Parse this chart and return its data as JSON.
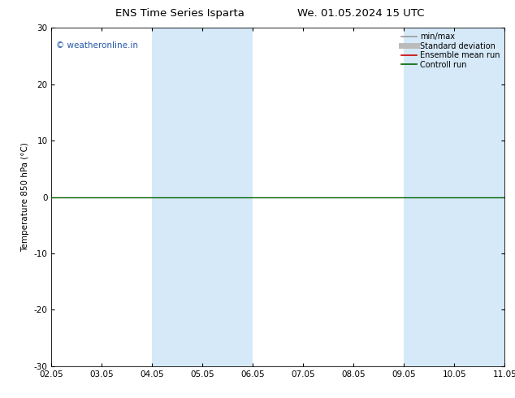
{
  "title_left": "ENS Time Series Isparta",
  "title_right": "We. 01.05.2024 15 UTC",
  "ylabel": "Temperature 850 hPa (°C)",
  "ylim": [
    -30,
    30
  ],
  "yticks": [
    -30,
    -20,
    -10,
    0,
    10,
    20,
    30
  ],
  "xtick_labels": [
    "02.05",
    "03.05",
    "04.05",
    "05.05",
    "06.05",
    "07.05",
    "08.05",
    "09.05",
    "10.05",
    "11.05"
  ],
  "xtick_positions": [
    0,
    1,
    2,
    3,
    4,
    5,
    6,
    7,
    8,
    9
  ],
  "shade_bands": [
    {
      "x_start": 2,
      "x_end": 4,
      "color": "#d6e9f8"
    },
    {
      "x_start": 7,
      "x_end": 9,
      "color": "#d6e9f8"
    }
  ],
  "hline_y": 0,
  "hline_color": "#006400",
  "hline_lw": 1.0,
  "watermark_text": "© weatheronline.in",
  "watermark_color": "#2255aa",
  "legend_items": [
    {
      "label": "min/max",
      "color": "#999999",
      "lw": 1.2
    },
    {
      "label": "Standard deviation",
      "color": "#bbbbbb",
      "lw": 5
    },
    {
      "label": "Ensemble mean run",
      "color": "#cc0000",
      "lw": 1.2
    },
    {
      "label": "Controll run",
      "color": "#006400",
      "lw": 1.2
    }
  ],
  "bg_color": "#ffffff",
  "plot_bg_color": "#ffffff",
  "fig_width": 6.34,
  "fig_height": 4.9,
  "dpi": 100,
  "title_fontsize": 9.5,
  "axis_fontsize": 7.5,
  "watermark_fontsize": 7.5,
  "legend_fontsize": 7.0
}
